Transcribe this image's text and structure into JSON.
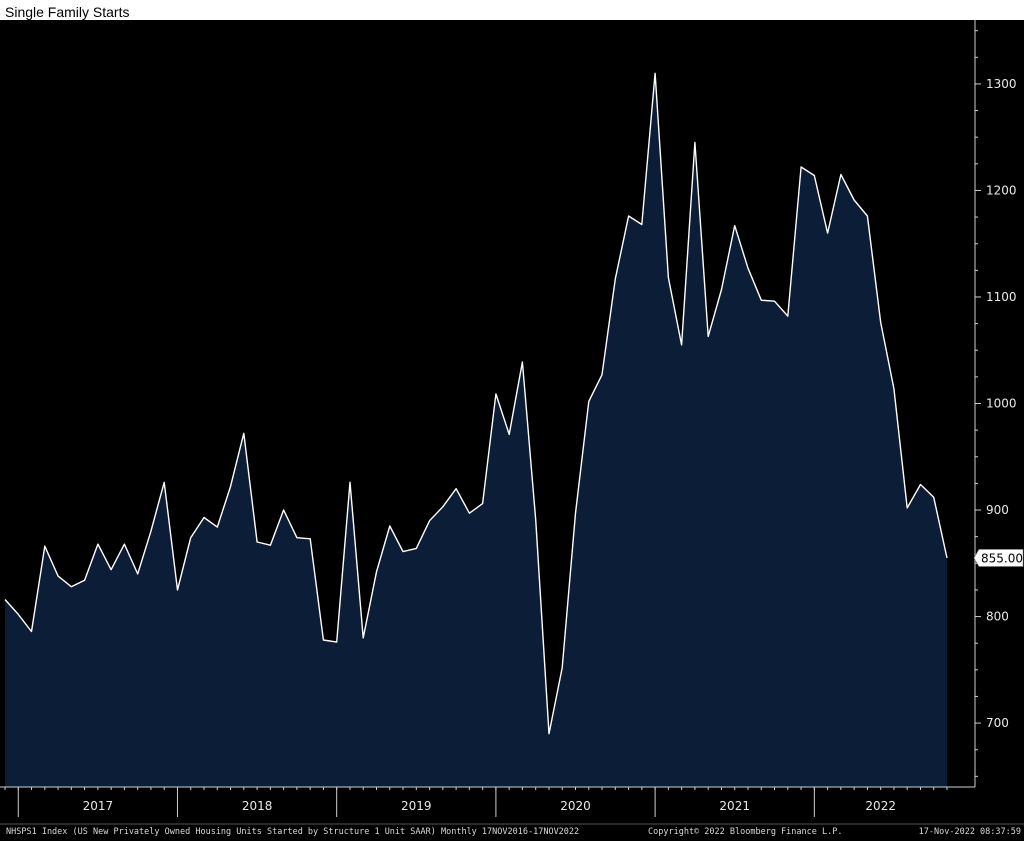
{
  "title": "Single Family Starts",
  "footer": {
    "description": "NHSPS1 Index (US New Privately Owned Housing Units Started by Structure 1 Unit SAAR)  Monthly 17NOV2016-17NOV2022",
    "copyright": "Copyright© 2022 Bloomberg Finance L.P.",
    "timestamp": "17-Nov-2022 08:37:59"
  },
  "last_value_label": "855.00",
  "colors": {
    "background": "#000000",
    "area_fill": "#0c1d38",
    "line": "#ffffff",
    "axis": "#cfcfcf",
    "text": "#e8e8e8",
    "last_value_box": "#ffffff"
  },
  "chart_data": {
    "type": "area",
    "title": "Single Family Starts",
    "x_start": "2016-12",
    "x_end": "2022-10",
    "x_frequency": "monthly",
    "ylim": [
      640,
      1360
    ],
    "yticks": [
      700,
      800,
      900,
      1000,
      1100,
      1200,
      1300
    ],
    "ytick_labels": [
      "700",
      "800",
      "900",
      "1000",
      "1100",
      "1200",
      "1300"
    ],
    "year_labels": [
      "2017",
      "2018",
      "2019",
      "2020",
      "2021",
      "2022"
    ],
    "grid": false,
    "legend": "none",
    "y_axis_side": "right",
    "values": [
      816,
      802,
      786,
      866,
      838,
      828,
      834,
      868,
      844,
      868,
      840,
      880,
      926,
      825,
      874,
      893,
      884,
      922,
      972,
      870,
      867,
      900,
      874,
      873,
      778,
      776,
      926,
      780,
      842,
      885,
      861,
      864,
      890,
      903,
      920,
      897,
      906,
      1009,
      971,
      1039,
      891,
      690,
      752,
      897,
      1002,
      1027,
      1117,
      1176,
      1168,
      1310,
      1118,
      1055,
      1245,
      1063,
      1107,
      1167,
      1127,
      1097,
      1096,
      1082,
      1222,
      1214,
      1160,
      1215,
      1191,
      1176,
      1076,
      1014,
      902,
      924,
      912,
      855
    ]
  }
}
